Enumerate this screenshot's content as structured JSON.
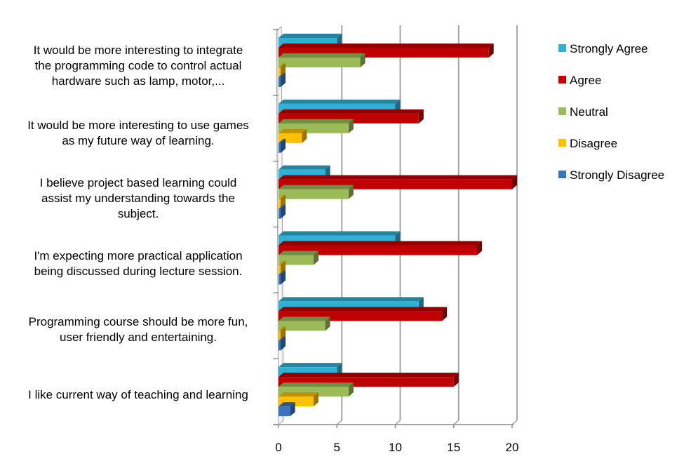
{
  "chart_data": {
    "type": "bar",
    "orientation": "horizontal",
    "style": "3d-clustered",
    "title": "",
    "xlabel": "",
    "ylabel": "",
    "xlim": [
      0,
      20
    ],
    "x_ticks": [
      0,
      5,
      10,
      15,
      20
    ],
    "grid": true,
    "legend_position": "right",
    "categories": [
      [
        "It would be more interesting to integrate",
        "the programming code to control actual",
        "hardware such as lamp, motor,..."
      ],
      [
        "It would be more interesting to use games",
        "as my future way of learning."
      ],
      [
        "I believe project based learning could",
        "assist my understanding towards the",
        "subject."
      ],
      [
        "I'm expecting more practical application",
        "being discussed during lecture session."
      ],
      [
        "Programming course should be more fun,",
        "user friendly and entertaining."
      ],
      [
        "I like current way of teaching and learning"
      ]
    ],
    "series": [
      {
        "name": "Strongly Agree",
        "color": "#31B0D5",
        "values": [
          5,
          10,
          4,
          10,
          12,
          5
        ]
      },
      {
        "name": "Agree",
        "color": "#C00000",
        "values": [
          18,
          12,
          20,
          17,
          14,
          15
        ]
      },
      {
        "name": "Neutral",
        "color": "#9BBB59",
        "values": [
          7,
          6,
          6,
          3,
          4,
          6
        ]
      },
      {
        "name": "Disagree",
        "color": "#FFC000",
        "values": [
          0,
          2,
          0,
          0,
          0,
          3
        ]
      },
      {
        "name": "Strongly Disagree",
        "color": "#3A74BE",
        "values": [
          0,
          0,
          0,
          0,
          0,
          1
        ]
      }
    ]
  }
}
